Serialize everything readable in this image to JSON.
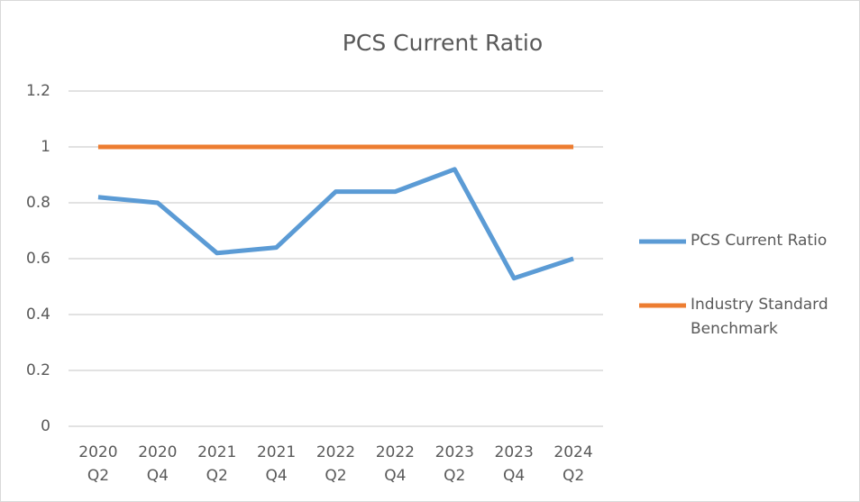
{
  "chart_data": {
    "type": "line",
    "title": "PCS Current Ratio",
    "categories": [
      "2020\nQ2",
      "2020\nQ4",
      "2021\nQ2",
      "2021\nQ4",
      "2022\nQ2",
      "2022\nQ4",
      "2023\nQ2",
      "2023\nQ4",
      "2024\nQ2"
    ],
    "series": [
      {
        "name": "PCS Current Ratio",
        "color": "#5b9bd5",
        "values": [
          0.82,
          0.8,
          0.62,
          0.64,
          0.84,
          0.84,
          0.92,
          0.53,
          0.6
        ]
      },
      {
        "name": "Industry Standard Benchmark",
        "color": "#ed7d31",
        "values": [
          1,
          1,
          1,
          1,
          1,
          1,
          1,
          1,
          1
        ]
      }
    ],
    "ylim": [
      0,
      1.2
    ],
    "yticks": [
      0,
      0.2,
      0.4,
      0.6,
      0.8,
      1,
      1.2
    ],
    "grid": true,
    "legend": "right"
  }
}
